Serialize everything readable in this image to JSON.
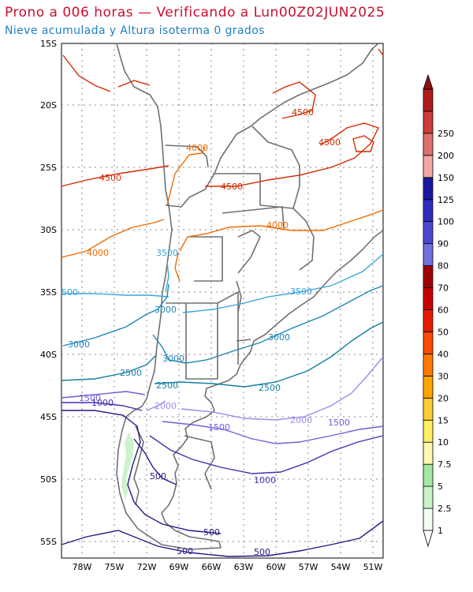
{
  "header": {
    "title": "Prono a 006 horas — Verificando a Lun00Z02JUN2025",
    "subtitle": "Nieve acumulada y Altura isoterma 0 grados"
  },
  "axes": {
    "lat_labels": [
      "15S",
      "20S",
      "25S",
      "30S",
      "35S",
      "40S",
      "45S",
      "50S",
      "55S"
    ],
    "lon_labels": [
      "78W",
      "75W",
      "72W",
      "69W",
      "66W",
      "63W",
      "60W",
      "57W",
      "54W",
      "51W"
    ]
  },
  "colorbar": {
    "labels": [
      "1",
      "2.5",
      "5",
      "7.5",
      "10",
      "15",
      "20",
      "30",
      "40",
      "50",
      "60",
      "70",
      "80",
      "90",
      "100",
      "125",
      "150",
      "200",
      "250"
    ],
    "colors": [
      "#f0fff0",
      "#c8f2c8",
      "#a4e6a4",
      "#fff8b0",
      "#ffee66",
      "#ffcc33",
      "#ffa500",
      "#ff7a00",
      "#ff4a00",
      "#e61c00",
      "#c80000",
      "#a00000",
      "#7070e0",
      "#4a4ad0",
      "#2d2dbd",
      "#1a1aa0",
      "#f4a6a6",
      "#e07070",
      "#cc3a3a",
      "#b01c1c"
    ]
  },
  "contour_labels": [
    {
      "text": "4500",
      "color": "#d62a00"
    },
    {
      "text": "4500",
      "color": "#d62a00"
    },
    {
      "text": "4500",
      "color": "#d62a00"
    },
    {
      "text": "4500",
      "color": "#d62a00"
    },
    {
      "text": "4000",
      "color": "#ef6a00"
    },
    {
      "text": "4000",
      "color": "#ef6a00"
    },
    {
      "text": "4000",
      "color": "#ef6a00"
    },
    {
      "text": "3500",
      "color": "#3aa6dd"
    },
    {
      "text": "3500",
      "color": "#3aa6dd"
    },
    {
      "text": "500",
      "color": "#3aa6dd"
    },
    {
      "text": "3000",
      "color": "#1f86b3"
    },
    {
      "text": "3000",
      "color": "#1f86b3"
    },
    {
      "text": "3000",
      "color": "#1f86b3"
    },
    {
      "text": "3000",
      "color": "#1f86b3"
    },
    {
      "text": "2500",
      "color": "#147ea3"
    },
    {
      "text": "2500",
      "color": "#147ea3"
    },
    {
      "text": "2500",
      "color": "#147ea3"
    },
    {
      "text": "2000",
      "color": "#9a8cf0"
    },
    {
      "text": "2000",
      "color": "#9a8cf0"
    },
    {
      "text": "1500",
      "color": "#6f5fd6"
    },
    {
      "text": "1500",
      "color": "#6f5fd6"
    },
    {
      "text": "1500",
      "color": "#6f5fd6"
    },
    {
      "text": "1000",
      "color": "#3f30b0"
    },
    {
      "text": "1000",
      "color": "#3f30b0"
    },
    {
      "text": "500",
      "color": "#241a86"
    },
    {
      "text": "500",
      "color": "#241a86"
    },
    {
      "text": "500",
      "color": "#241a86"
    },
    {
      "text": "500",
      "color": "#241a86"
    }
  ]
}
